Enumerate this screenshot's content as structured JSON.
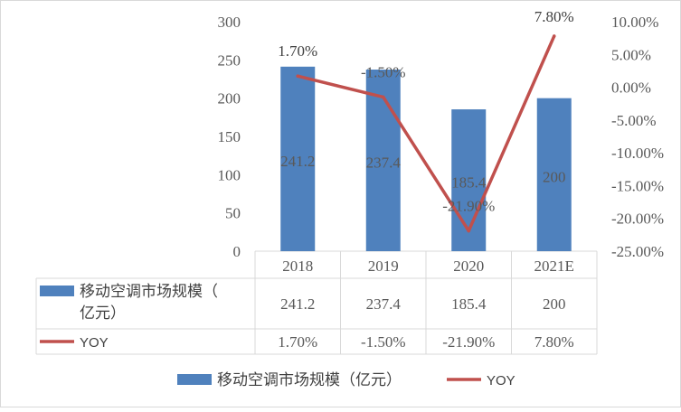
{
  "chart_data": {
    "type": "bar",
    "categories": [
      "2018",
      "2019",
      "2020",
      "2021E"
    ],
    "series": [
      {
        "name": "移动空调市场规模（亿元）",
        "kind": "bar",
        "axis": "left",
        "color": "#4F81BD",
        "values": [
          241.2,
          237.4,
          185.4,
          200
        ],
        "labels": [
          "241.2",
          "237.4",
          "185.4",
          "200"
        ]
      },
      {
        "name": "YOY",
        "kind": "line",
        "axis": "right",
        "color": "#C0504D",
        "values": [
          1.7,
          -1.5,
          -21.9,
          7.8
        ],
        "labels": [
          "1.70%",
          "-1.50%",
          "-21.90%",
          "7.80%"
        ]
      }
    ],
    "y_left": {
      "range": [
        0,
        300
      ],
      "ticks": [
        0,
        50,
        100,
        150,
        200,
        250,
        300
      ],
      "tick_labels": [
        "0",
        "50",
        "100",
        "150",
        "200",
        "250",
        "300"
      ]
    },
    "y_right": {
      "range": [
        -25,
        10
      ],
      "ticks": [
        -25,
        -20,
        -15,
        -10,
        -5,
        0,
        5,
        10
      ],
      "tick_labels": [
        "-25.00%",
        "-20.00%",
        "-15.00%",
        "-10.00%",
        "-5.00%",
        "0.00%",
        "5.00%",
        "10.00%"
      ]
    },
    "data_table": true,
    "legend_position": "bottom",
    "grid": false
  }
}
